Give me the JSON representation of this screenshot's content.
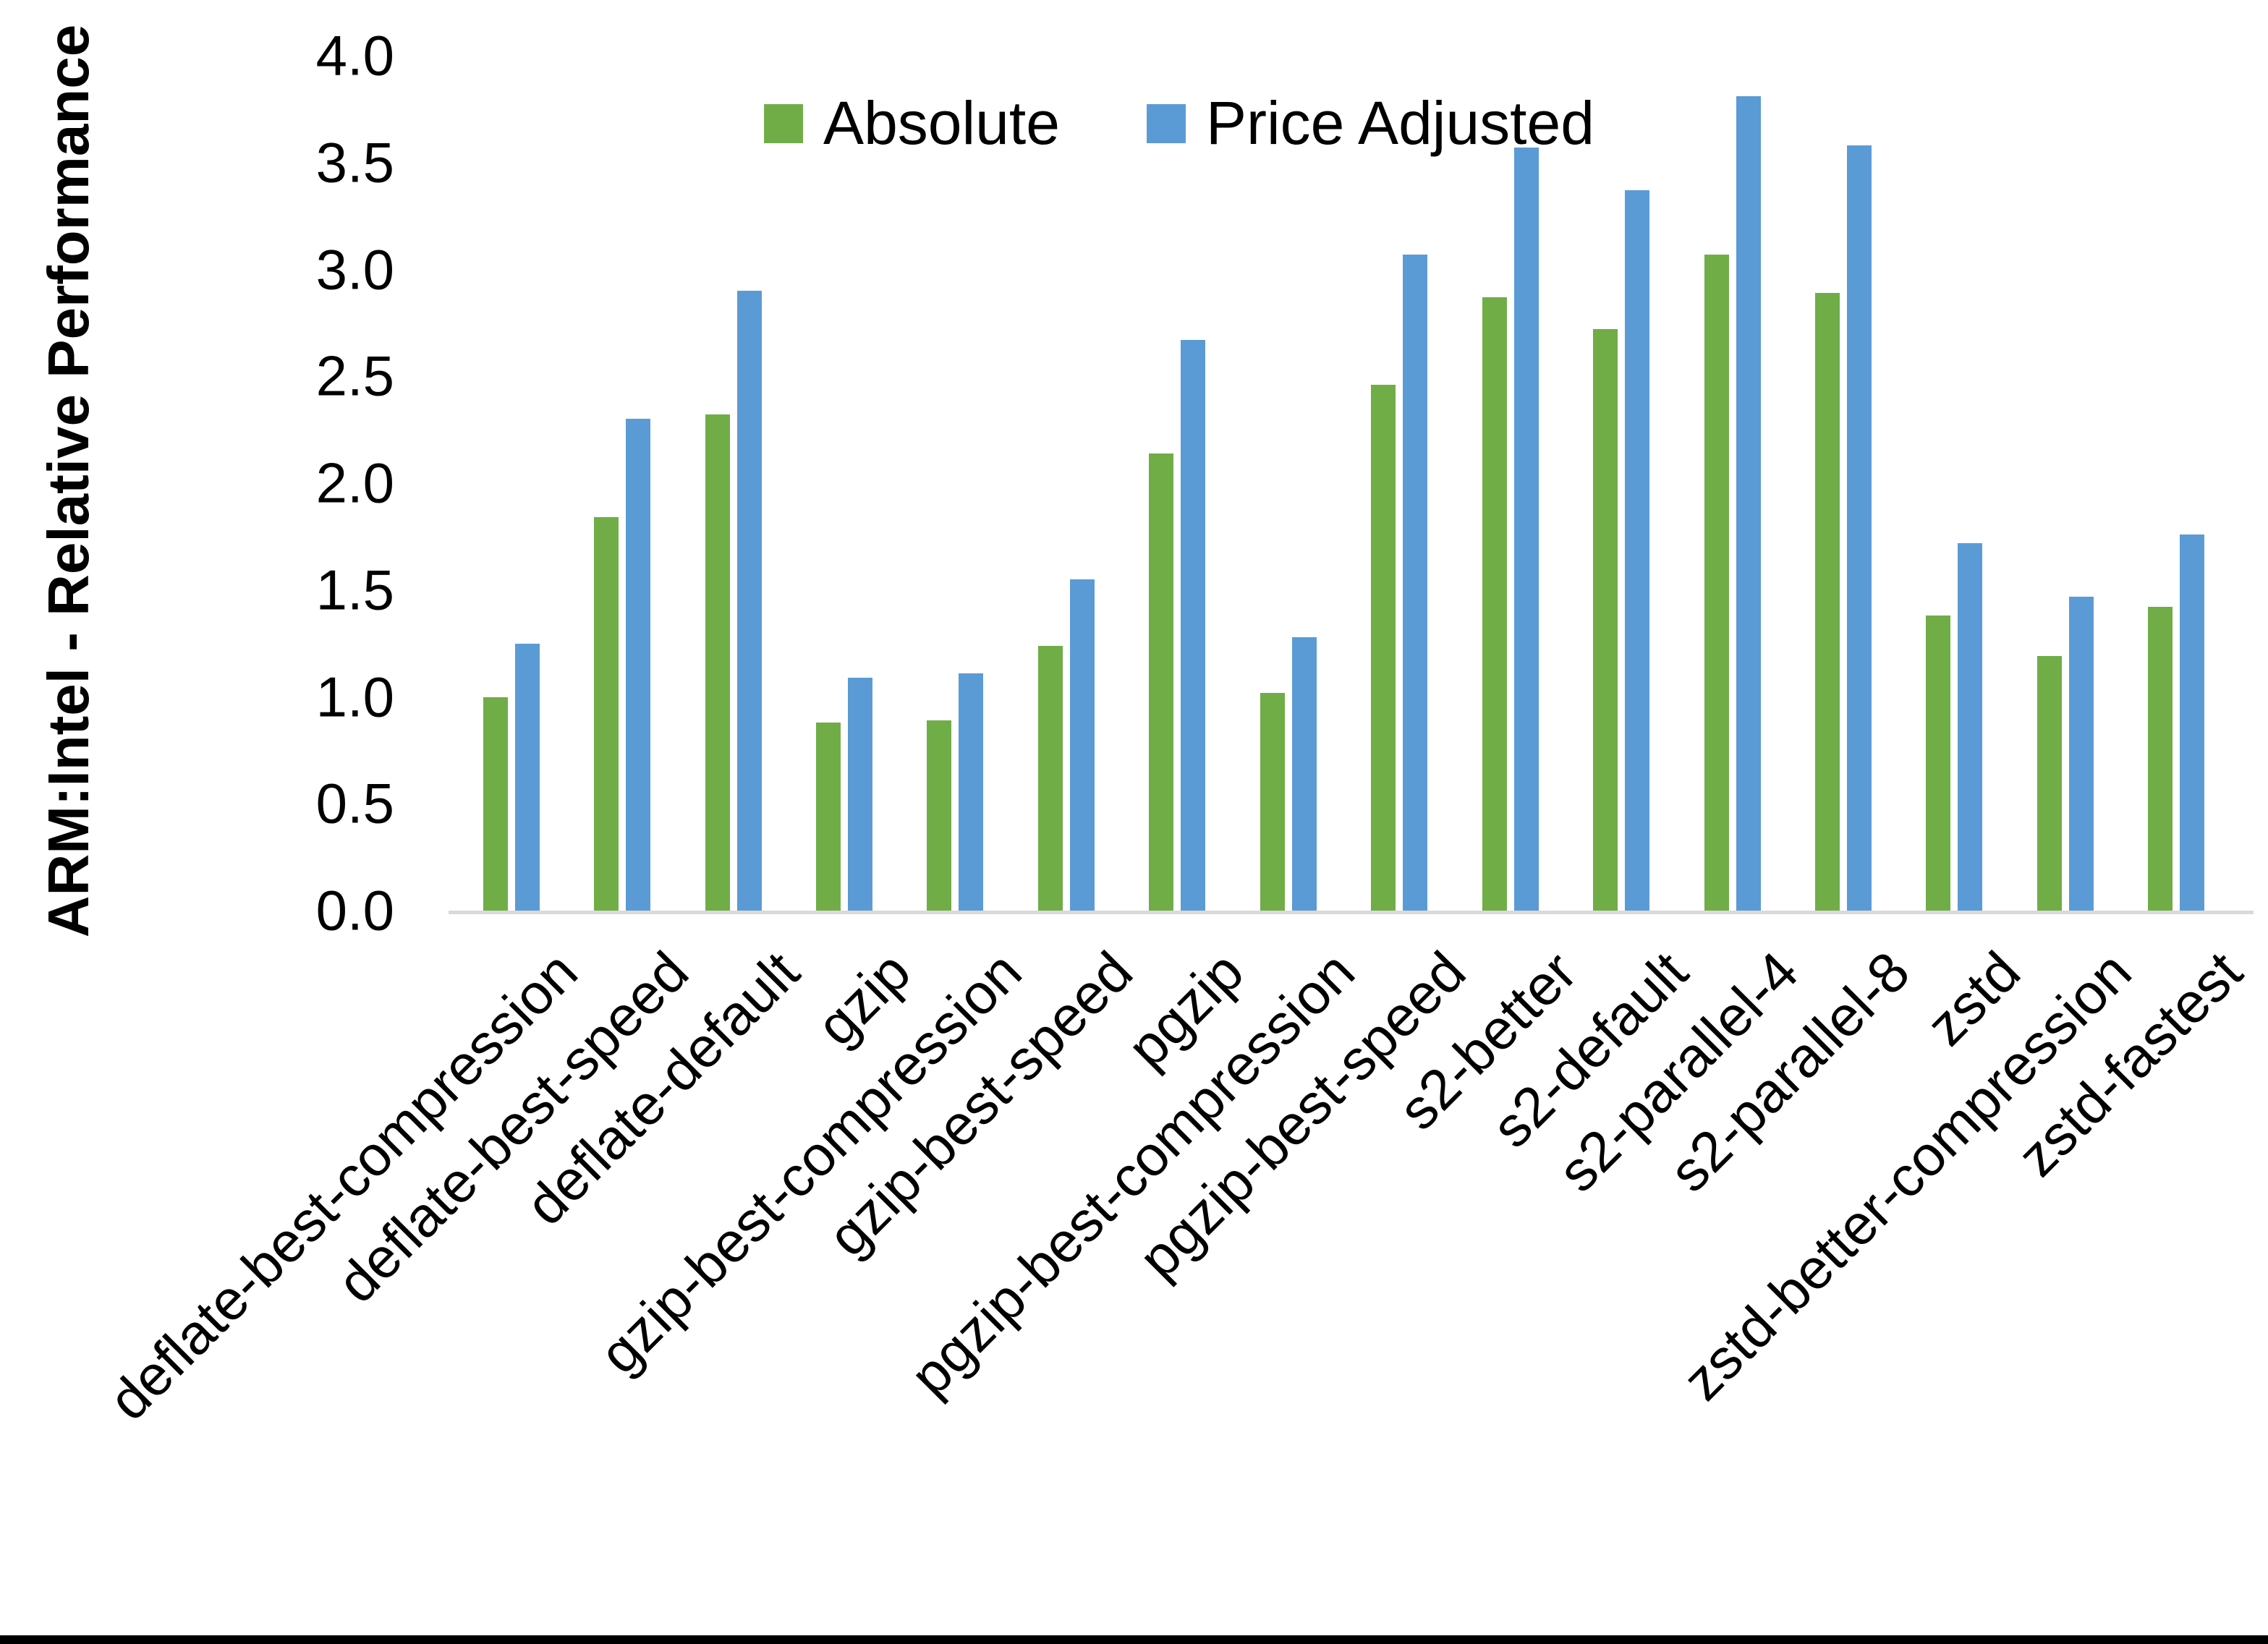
{
  "chart_data": {
    "type": "bar",
    "title": "",
    "xlabel": "",
    "ylabel": "ARM:Intel - Relative Performance",
    "ylim": [
      0.0,
      4.0
    ],
    "y_ticks": [
      "0.0",
      "0.5",
      "1.0",
      "1.5",
      "2.0",
      "2.5",
      "3.0",
      "3.5",
      "4.0"
    ],
    "grid": "off",
    "legend_position": "top-center",
    "categories": [
      "deflate-best-compression",
      "deflate-best-speed",
      "deflate-default",
      "gzip",
      "gzip-best-compression",
      "gzip-best-speed",
      "pgzip",
      "pgzip-best-compression",
      "pgzip-best-speed",
      "s2-better",
      "s2-default",
      "s2-parallel-4",
      "s2-parallel-8",
      "zstd",
      "zstd-better-compression",
      "zstd-fastest"
    ],
    "series": [
      {
        "name": "Absolute",
        "color": "#70AD47",
        "values": [
          1.0,
          1.84,
          2.32,
          0.88,
          0.89,
          1.24,
          2.14,
          1.02,
          2.46,
          2.87,
          2.72,
          3.07,
          2.89,
          1.38,
          1.19,
          1.42
        ]
      },
      {
        "name": "Price Adjusted",
        "color": "#5B9BD5",
        "values": [
          1.25,
          2.3,
          2.9,
          1.09,
          1.11,
          1.55,
          2.67,
          1.28,
          3.07,
          3.57,
          3.37,
          3.81,
          3.58,
          1.72,
          1.47,
          1.76
        ]
      }
    ]
  },
  "colors": {
    "background": "#FFFFFF",
    "axis_line": "#D9D9D9",
    "text": "#000000",
    "bottom_border": "#000000"
  }
}
